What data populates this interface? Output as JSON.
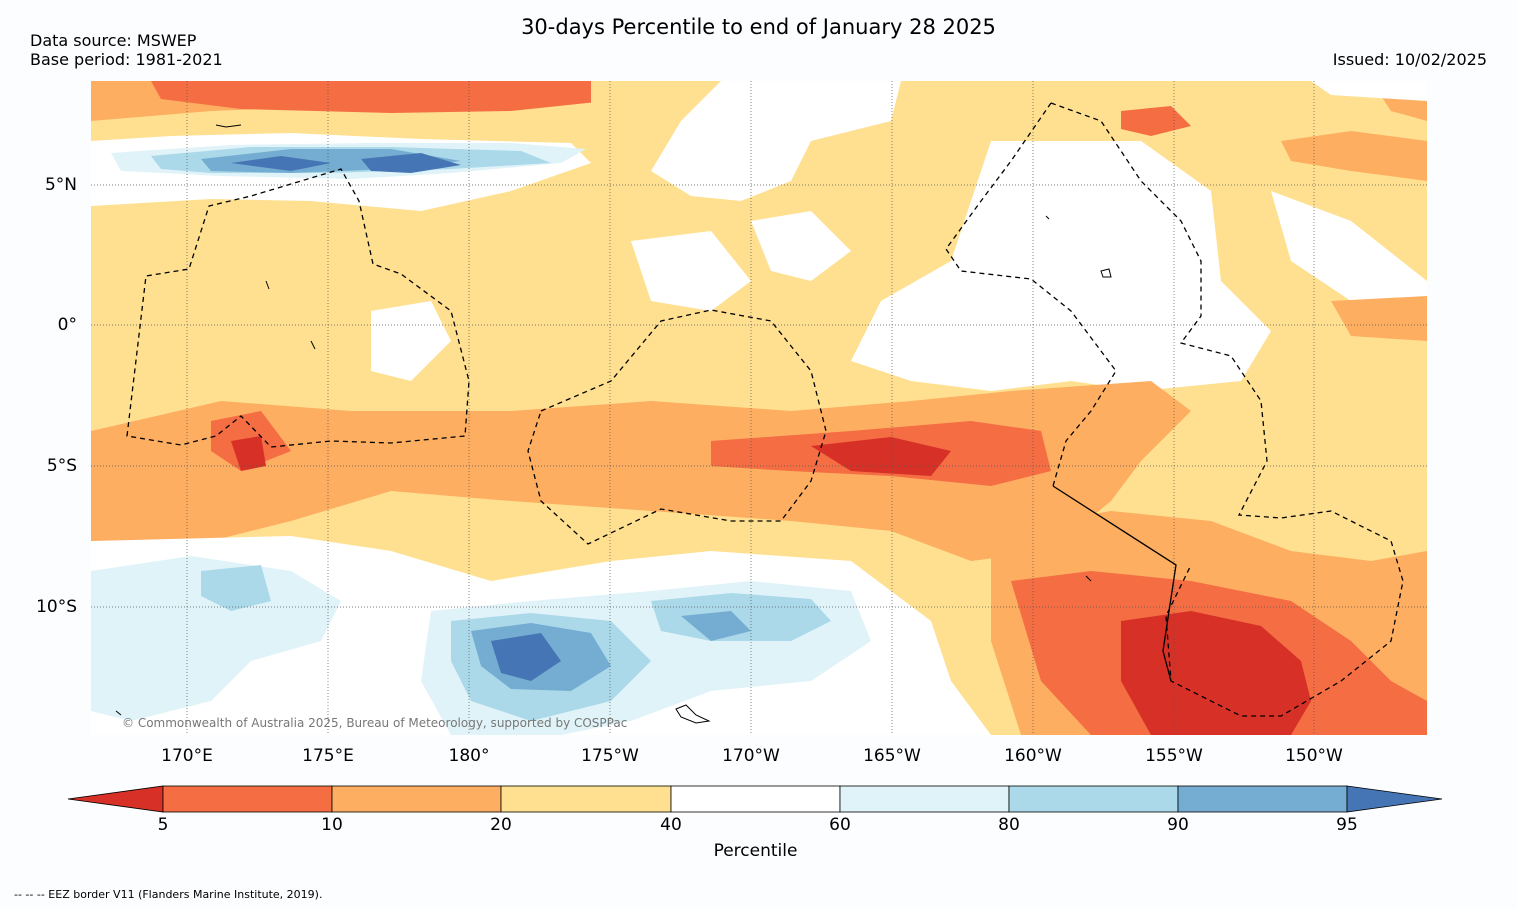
{
  "header": {
    "title": "30-days Percentile to end of January 28 2025",
    "data_source": "Data source: MSWEP",
    "base_period": "Base period: 1981-2021",
    "issued": "Issued: 10/02/2025"
  },
  "map": {
    "lat_labels": [
      "5°N",
      "0°",
      "5°S",
      "10°S"
    ],
    "lon_labels": [
      "170°E",
      "175°E",
      "180°",
      "175°W",
      "170°W",
      "165°W",
      "160°W",
      "155°W",
      "150°W"
    ],
    "copyright": "© Commonwealth of Australia 2025, Bureau of Meteorology, supported by COSPPac"
  },
  "colorbar": {
    "label": "Percentile",
    "ticks": [
      "5",
      "10",
      "20",
      "40",
      "60",
      "80",
      "90",
      "95"
    ],
    "colors": [
      "#d73027",
      "#f46d43",
      "#fdae61",
      "#fee090",
      "#ffffff",
      "#e0f3f8",
      "#abd9e9",
      "#74add1",
      "#4575b4"
    ]
  },
  "footer": {
    "note": "--  --  -- EEZ border V11 (Flanders Marine Institute, 2019)."
  }
}
